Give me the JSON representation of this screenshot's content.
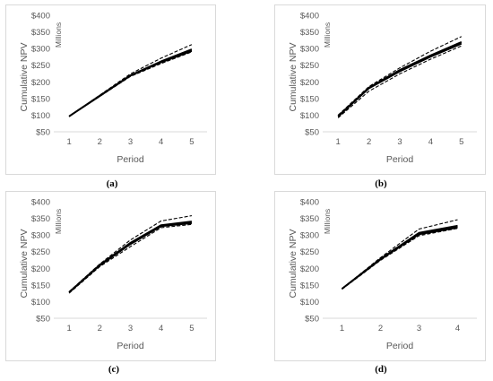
{
  "chart_data": [
    {
      "type": "line",
      "caption": "(a)",
      "ylabel": "Cumulative NPV",
      "yunit": "Millions",
      "xlabel": "Period",
      "x": [
        1,
        2,
        3,
        4,
        5
      ],
      "ylim": [
        50,
        400
      ],
      "yticks": [
        50,
        100,
        150,
        200,
        250,
        300,
        350,
        400
      ],
      "ytick_labels": [
        "$50",
        "$100",
        "$150",
        "$200",
        "$250",
        "$300",
        "$350",
        "$400"
      ],
      "grid": false,
      "series": [
        {
          "style": "solid",
          "values": [
            96,
            158,
            219,
            260,
            295
          ]
        },
        {
          "style": "solid",
          "values": [
            96,
            157,
            218,
            258,
            292
          ]
        },
        {
          "style": "solid",
          "values": [
            97,
            159,
            220,
            262,
            298
          ]
        },
        {
          "style": "dashed",
          "values": [
            96,
            160,
            224,
            271,
            312
          ]
        },
        {
          "style": "dashed",
          "values": [
            96,
            156,
            216,
            255,
            290
          ]
        }
      ]
    },
    {
      "type": "line",
      "caption": "(b)",
      "ylabel": "Cumulative NPV",
      "yunit": "Millions",
      "xlabel": "Period",
      "x": [
        1,
        2,
        3,
        4,
        5
      ],
      "ylim": [
        50,
        400
      ],
      "yticks": [
        50,
        100,
        150,
        200,
        250,
        300,
        350,
        400
      ],
      "ytick_labels": [
        "$50",
        "$100",
        "$150",
        "$200",
        "$250",
        "$300",
        "$350",
        "$400"
      ],
      "grid": false,
      "series": [
        {
          "style": "solid",
          "values": [
            97,
            182,
            234,
            278,
            318
          ]
        },
        {
          "style": "solid",
          "values": [
            95,
            180,
            231,
            275,
            314
          ]
        },
        {
          "style": "solid",
          "values": [
            98,
            183,
            236,
            280,
            320
          ]
        },
        {
          "style": "dashed",
          "values": [
            100,
            186,
            242,
            292,
            336
          ]
        },
        {
          "style": "dashed",
          "values": [
            92,
            172,
            224,
            268,
            308
          ]
        }
      ]
    },
    {
      "type": "line",
      "caption": "(c)",
      "ylabel": "Cumulative NPV",
      "yunit": "Millions",
      "xlabel": "Period",
      "x": [
        1,
        2,
        3,
        4,
        5
      ],
      "ylim": [
        50,
        400
      ],
      "yticks": [
        50,
        100,
        150,
        200,
        250,
        300,
        350,
        400
      ],
      "ytick_labels": [
        "$50",
        "$100",
        "$150",
        "$200",
        "$250",
        "$300",
        "$350",
        "$400"
      ],
      "grid": false,
      "series": [
        {
          "style": "solid",
          "values": [
            128,
            210,
            275,
            328,
            338
          ]
        },
        {
          "style": "solid",
          "values": [
            127,
            208,
            272,
            326,
            335
          ]
        },
        {
          "style": "solid",
          "values": [
            129,
            211,
            277,
            330,
            341
          ]
        },
        {
          "style": "dashed",
          "values": [
            130,
            213,
            285,
            342,
            358
          ]
        },
        {
          "style": "dashed",
          "values": [
            125,
            205,
            265,
            322,
            332
          ]
        }
      ]
    },
    {
      "type": "line",
      "caption": "(d)",
      "ylabel": "Cumulative NPV",
      "yunit": "Millions",
      "xlabel": "Period",
      "x": [
        1,
        2,
        3,
        4
      ],
      "ylim": [
        50,
        400
      ],
      "yticks": [
        50,
        100,
        150,
        200,
        250,
        300,
        350,
        400
      ],
      "ytick_labels": [
        "$50",
        "$100",
        "$150",
        "$200",
        "$250",
        "$300",
        "$350",
        "$400"
      ],
      "grid": false,
      "series": [
        {
          "style": "solid",
          "values": [
            138,
            228,
            305,
            325
          ]
        },
        {
          "style": "solid",
          "values": [
            138,
            226,
            302,
            322
          ]
        },
        {
          "style": "solid",
          "values": [
            139,
            229,
            307,
            328
          ]
        },
        {
          "style": "dashed",
          "values": [
            139,
            232,
            318,
            346
          ]
        },
        {
          "style": "dashed",
          "values": [
            137,
            224,
            298,
            320
          ]
        }
      ]
    }
  ]
}
